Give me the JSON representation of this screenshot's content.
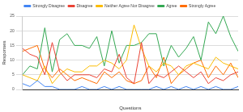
{
  "chart_data": {
    "type": "line",
    "x_label": "Questions",
    "y_label": "Responses",
    "categories": [
      null,
      null,
      null,
      null,
      null,
      null,
      null,
      null,
      null,
      null,
      null,
      null,
      null,
      null,
      null,
      null,
      null,
      null,
      null,
      null,
      null,
      null,
      null,
      null,
      null,
      null,
      null,
      null,
      null,
      null
    ],
    "series": [
      {
        "name": "Strongly Disagree",
        "color": "#4285f4",
        "values": [
          2,
          1,
          3,
          1,
          1,
          0,
          0,
          0,
          1,
          0,
          0,
          1,
          0,
          1,
          0,
          0,
          0,
          0,
          1,
          0,
          1,
          0,
          1,
          0,
          1,
          0,
          1,
          0,
          0,
          1
        ]
      },
      {
        "name": "Disagree",
        "color": "#ea4335",
        "values": [
          14,
          12,
          11,
          5,
          16,
          6,
          3,
          5,
          5,
          5,
          4,
          7,
          6,
          12,
          4,
          2,
          16,
          2,
          5,
          4,
          6,
          8,
          6,
          4,
          6,
          2,
          4,
          3,
          5,
          6
        ]
      },
      {
        "name": "Neither Agree Nor Disagree",
        "color": "#fbbc04",
        "values": [
          5,
          4,
          3,
          8,
          2,
          5,
          7,
          6,
          6,
          8,
          8,
          10,
          9,
          7,
          10,
          22,
          14,
          8,
          6,
          9,
          8,
          5,
          8,
          9,
          8,
          7,
          11,
          9,
          8,
          7
        ]
      },
      {
        "name": "Agree",
        "color": "#34a853",
        "values": [
          5,
          8,
          7,
          21,
          6,
          17,
          19,
          15,
          15,
          14,
          18,
          8,
          20,
          9,
          15,
          15,
          16,
          19,
          19,
          8,
          15,
          11,
          14,
          18,
          10,
          23,
          19,
          25,
          18,
          13
        ]
      },
      {
        "name": "Strongly Agree",
        "color": "#ff6d01",
        "values": [
          13,
          14,
          15,
          7,
          4,
          7,
          5,
          3,
          4,
          3,
          2,
          6,
          4,
          6,
          3,
          2,
          3,
          8,
          4,
          11,
          2,
          5,
          7,
          9,
          10,
          4,
          8,
          5,
          9,
          4
        ]
      }
    ],
    "ylim": [
      0,
      25
    ],
    "yticks": [
      0,
      5,
      10,
      15,
      20,
      25
    ],
    "grid": true,
    "legend": "top",
    "marker": "none",
    "line_style": "solid"
  }
}
